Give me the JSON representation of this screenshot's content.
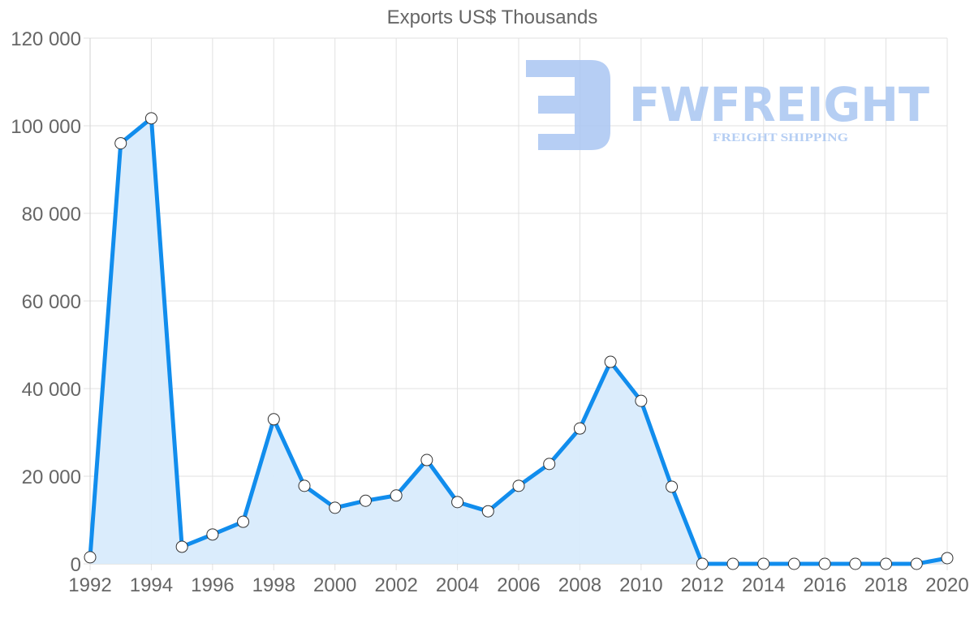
{
  "chart_data": {
    "type": "line",
    "title": "Exports US$ Thousands",
    "xlabel": "",
    "ylabel": "",
    "x": [
      1992,
      1993,
      1994,
      1995,
      1996,
      1997,
      1998,
      1999,
      2000,
      2001,
      2002,
      2003,
      2004,
      2005,
      2006,
      2007,
      2008,
      2009,
      2010,
      2011,
      2012,
      2013,
      2014,
      2015,
      2016,
      2017,
      2018,
      2019,
      2020
    ],
    "series": [
      {
        "name": "Exports US$ Thousands",
        "values": [
          1500,
          96000,
          101700,
          3900,
          6700,
          9600,
          33000,
          17800,
          12800,
          14400,
          15600,
          23700,
          14100,
          12000,
          17800,
          22800,
          30900,
          46100,
          37200,
          17600,
          0,
          0,
          0,
          0,
          0,
          0,
          0,
          0,
          1300
        ]
      }
    ],
    "ylim": [
      0,
      120000
    ],
    "xlim": [
      1992,
      2020
    ],
    "y_ticks": [
      "0",
      "20 000",
      "40 000",
      "60 000",
      "80 000",
      "100 000",
      "120 000"
    ],
    "y_tick_values": [
      0,
      20000,
      40000,
      60000,
      80000,
      100000,
      120000
    ],
    "x_ticks": [
      "1992",
      "1994",
      "1996",
      "1998",
      "2000",
      "2002",
      "2004",
      "2006",
      "2008",
      "2010",
      "2012",
      "2014",
      "2016",
      "2018",
      "2020"
    ],
    "grid": true,
    "fill": true,
    "legend": "none",
    "colors": {
      "line": "#118ded",
      "fill": "#d8ebfc",
      "point_fill": "#ffffff",
      "point_stroke": "#333333",
      "grid": "#e1e1e1",
      "axis_text": "#666666"
    }
  },
  "watermark": {
    "brand": "FWFREIGHT",
    "tagline": "FREIGHT SHIPPING",
    "color": "#a9c6f2"
  }
}
